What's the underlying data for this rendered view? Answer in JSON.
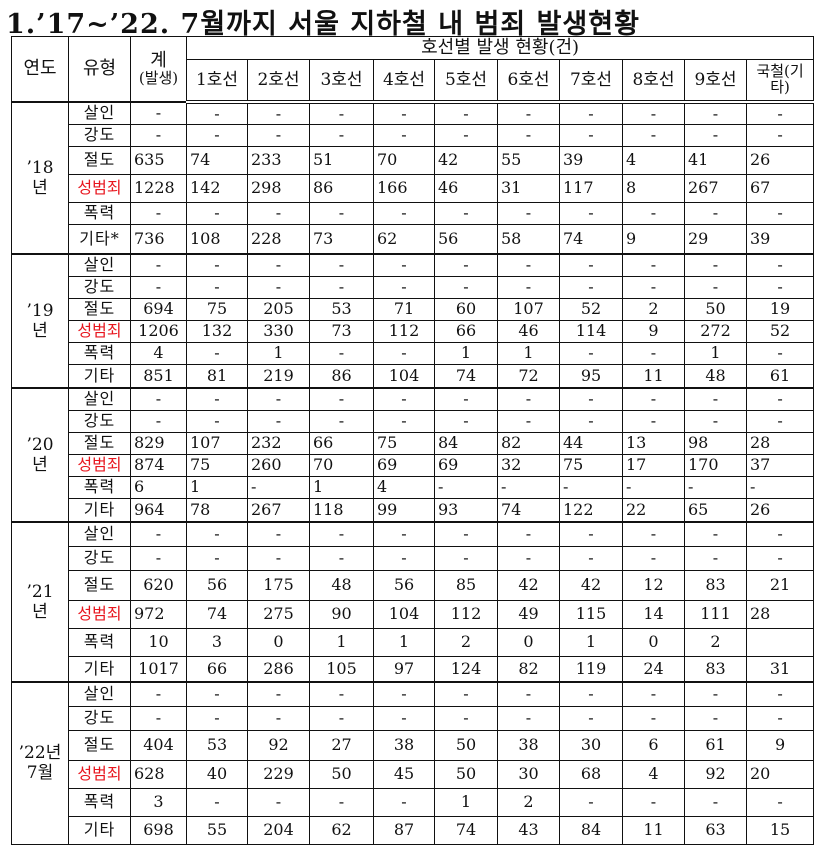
{
  "title": "1.’17~’22. 7월까지 서울 지하철 내 범죄 발생현황",
  "header": {
    "year": "연도",
    "type": "유형",
    "total": "계",
    "total_sub": "(발생)",
    "by_line": "호선별 발생 현황(건)",
    "lines": [
      "1호선",
      "2호선",
      "3호선",
      "4호선",
      "5호선",
      "6호선",
      "7호선",
      "8호선",
      "9호선",
      "국철(기타)"
    ]
  },
  "blocks": [
    {
      "year": "’18\n년",
      "rows": [
        {
          "type": "살인",
          "align": "c",
          "values": [
            "-",
            "-",
            "-",
            "-",
            "-",
            "-",
            "-",
            "-",
            "-",
            "-",
            "-"
          ]
        },
        {
          "type": "강도",
          "align": "c",
          "values": [
            "-",
            "-",
            "-",
            "-",
            "-",
            "-",
            "-",
            "-",
            "-",
            "-",
            "-"
          ]
        },
        {
          "type": "절도",
          "align": "l",
          "values": [
            "635",
            "74",
            "233",
            "51",
            "70",
            "42",
            "55",
            "39",
            "4",
            "41",
            "26"
          ]
        },
        {
          "type": "성범죄",
          "align": "l",
          "values": [
            "1228",
            "142",
            "298",
            "86",
            "166",
            "46",
            "31",
            "117",
            "8",
            "267",
            "67"
          ]
        },
        {
          "type": "폭력",
          "align": "c",
          "values": [
            "-",
            "-",
            "-",
            "-",
            "-",
            "-",
            "-",
            "-",
            "-",
            "-",
            "-"
          ]
        },
        {
          "type": "기타*",
          "align": "l",
          "values": [
            "736",
            "108",
            "228",
            "73",
            "62",
            "56",
            "58",
            "74",
            "9",
            "29",
            "39"
          ]
        }
      ]
    },
    {
      "year": "’19\n년",
      "rows": [
        {
          "type": "살인",
          "align": "c",
          "values": [
            "-",
            "-",
            "-",
            "-",
            "-",
            "-",
            "-",
            "-",
            "-",
            "-",
            "-"
          ]
        },
        {
          "type": "강도",
          "align": "c",
          "values": [
            "-",
            "-",
            "-",
            "-",
            "-",
            "-",
            "-",
            "-",
            "-",
            "-",
            "-"
          ]
        },
        {
          "type": "절도",
          "align": "c",
          "values": [
            "694",
            "75",
            "205",
            "53",
            "71",
            "60",
            "107",
            "52",
            "2",
            "50",
            "19"
          ]
        },
        {
          "type": "성범죄",
          "align": "c",
          "values": [
            "1206",
            "132",
            "330",
            "73",
            "112",
            "66",
            "46",
            "114",
            "9",
            "272",
            "52"
          ]
        },
        {
          "type": "폭력",
          "align": "c",
          "values": [
            "4",
            "-",
            "1",
            "-",
            "-",
            "1",
            "1",
            "-",
            "-",
            "1",
            "-"
          ]
        },
        {
          "type": "기타",
          "align": "c",
          "values": [
            "851",
            "81",
            "219",
            "86",
            "104",
            "74",
            "72",
            "95",
            "11",
            "48",
            "61"
          ]
        }
      ]
    },
    {
      "year": "’20\n년",
      "rows": [
        {
          "type": "살인",
          "align": "c",
          "values": [
            "-",
            "-",
            "-",
            "-",
            "-",
            "-",
            "-",
            "-",
            "-",
            "-",
            "-"
          ]
        },
        {
          "type": "강도",
          "align": "c",
          "values": [
            "-",
            "-",
            "-",
            "-",
            "-",
            "-",
            "-",
            "-",
            "-",
            "-",
            "-"
          ]
        },
        {
          "type": "절도",
          "align": "l",
          "values": [
            "829",
            "107",
            "232",
            "66",
            "75",
            "84",
            "82",
            "44",
            "13",
            "98",
            "28"
          ]
        },
        {
          "type": "성범죄",
          "align": "l",
          "values": [
            "874",
            "75",
            "260",
            "70",
            "69",
            "69",
            "32",
            "75",
            "17",
            "170",
            "37"
          ]
        },
        {
          "type": "폭력",
          "align": "l",
          "values": [
            "6",
            "1",
            "-",
            "1",
            "4",
            "-",
            "-",
            "-",
            "-",
            "-",
            "-"
          ]
        },
        {
          "type": "기타",
          "align": "l",
          "values": [
            "964",
            "78",
            "267",
            "118",
            "99",
            "93",
            "74",
            "122",
            "22",
            "65",
            "26"
          ]
        }
      ]
    },
    {
      "year": "’21\n년",
      "rows": [
        {
          "type": "살인",
          "align": "c",
          "values": [
            "-",
            "-",
            "-",
            "-",
            "-",
            "-",
            "-",
            "-",
            "-",
            "-",
            "-"
          ]
        },
        {
          "type": "강도",
          "align": "c",
          "values": [
            "-",
            "-",
            "-",
            "-",
            "-",
            "-",
            "-",
            "-",
            "-",
            "-",
            "-"
          ]
        },
        {
          "type": "절도",
          "align": "c",
          "values": [
            "620",
            "56",
            "175",
            "48",
            "56",
            "85",
            "42",
            "42",
            "12",
            "83",
            "21"
          ]
        },
        {
          "type": "성범죄",
          "align": "c",
          "values": [
            "972",
            "74",
            "275",
            "90",
            "104",
            "112",
            "49",
            "115",
            "14",
            "111",
            "28"
          ]
        },
        {
          "type": "폭력",
          "align": "c",
          "values": [
            "10",
            "3",
            "0",
            "1",
            "1",
            "2",
            "0",
            "1",
            "0",
            "2",
            ""
          ]
        },
        {
          "type": "기타",
          "align": "c",
          "values": [
            "1017",
            "66",
            "286",
            "105",
            "97",
            "124",
            "82",
            "119",
            "24",
            "83",
            "31"
          ]
        }
      ]
    },
    {
      "year": "’22년\n7월",
      "rows": [
        {
          "type": "살인",
          "align": "c",
          "values": [
            "-",
            "-",
            "-",
            "-",
            "-",
            "-",
            "-",
            "-",
            "-",
            "-",
            "-"
          ]
        },
        {
          "type": "강도",
          "align": "c",
          "values": [
            "-",
            "-",
            "-",
            "-",
            "-",
            "-",
            "-",
            "-",
            "-",
            "-",
            "-"
          ]
        },
        {
          "type": "절도",
          "align": "c",
          "values": [
            "404",
            "53",
            "92",
            "27",
            "38",
            "50",
            "38",
            "30",
            "6",
            "61",
            "9"
          ]
        },
        {
          "type": "성범죄",
          "align": "c",
          "values": [
            "628",
            "40",
            "229",
            "50",
            "45",
            "50",
            "30",
            "68",
            "4",
            "92",
            "20"
          ]
        },
        {
          "type": "폭력",
          "align": "c",
          "values": [
            "3",
            "-",
            "-",
            "-",
            "-",
            "1",
            "2",
            "-",
            "-",
            "-",
            "-"
          ]
        },
        {
          "type": "기타",
          "align": "c",
          "values": [
            "698",
            "55",
            "204",
            "62",
            "87",
            "74",
            "43",
            "84",
            "11",
            "63",
            "15"
          ]
        }
      ]
    }
  ],
  "colors": {
    "sex_crime_label": "#e8161e",
    "text": "#111111"
  }
}
